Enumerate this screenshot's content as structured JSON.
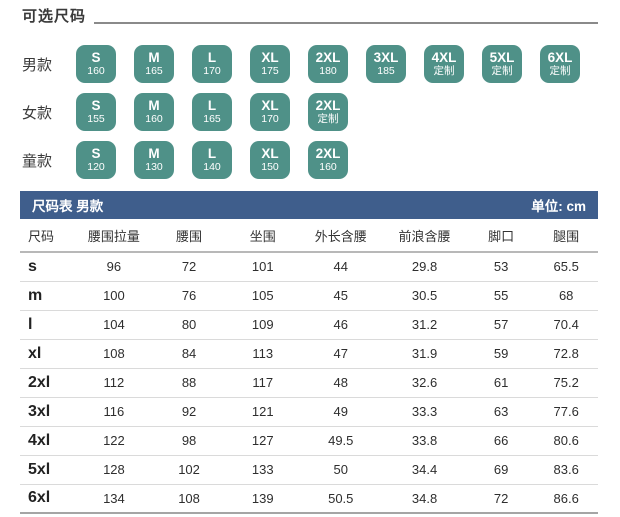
{
  "header": {
    "title": "可选尺码"
  },
  "colors": {
    "badge_green": "#4f9188",
    "table_header_blue": "#3f5e8c"
  },
  "size_options": {
    "rows": [
      {
        "label": "男款",
        "badges": [
          {
            "size": "S",
            "sub": "160"
          },
          {
            "size": "M",
            "sub": "165"
          },
          {
            "size": "L",
            "sub": "170"
          },
          {
            "size": "XL",
            "sub": "175"
          },
          {
            "size": "2XL",
            "sub": "180"
          },
          {
            "size": "3XL",
            "sub": "185"
          },
          {
            "size": "4XL",
            "sub": "定制"
          },
          {
            "size": "5XL",
            "sub": "定制"
          },
          {
            "size": "6XL",
            "sub": "定制"
          }
        ]
      },
      {
        "label": "女款",
        "badges": [
          {
            "size": "S",
            "sub": "155"
          },
          {
            "size": "M",
            "sub": "160"
          },
          {
            "size": "L",
            "sub": "165"
          },
          {
            "size": "XL",
            "sub": "170"
          },
          {
            "size": "2XL",
            "sub": "定制"
          }
        ]
      },
      {
        "label": "童款",
        "badges": [
          {
            "size": "S",
            "sub": "120"
          },
          {
            "size": "M",
            "sub": "130"
          },
          {
            "size": "L",
            "sub": "140"
          },
          {
            "size": "XL",
            "sub": "150"
          },
          {
            "size": "2XL",
            "sub": "160"
          }
        ]
      }
    ]
  },
  "size_table": {
    "title": "尺码表 男款",
    "unit_label": "单位: cm",
    "columns": [
      "尺码",
      "腰围拉量",
      "腰围",
      "坐围",
      "外长含腰",
      "前浪含腰",
      "脚口",
      "腿围"
    ],
    "rows": [
      {
        "size": "s",
        "values": [
          "96",
          "72",
          "101",
          "44",
          "29.8",
          "53",
          "65.5"
        ]
      },
      {
        "size": "m",
        "values": [
          "100",
          "76",
          "105",
          "45",
          "30.5",
          "55",
          "68"
        ]
      },
      {
        "size": "l",
        "values": [
          "104",
          "80",
          "109",
          "46",
          "31.2",
          "57",
          "70.4"
        ]
      },
      {
        "size": "xl",
        "values": [
          "108",
          "84",
          "113",
          "47",
          "31.9",
          "59",
          "72.8"
        ]
      },
      {
        "size": "2xl",
        "values": [
          "112",
          "88",
          "117",
          "48",
          "32.6",
          "61",
          "75.2"
        ]
      },
      {
        "size": "3xl",
        "values": [
          "116",
          "92",
          "121",
          "49",
          "33.3",
          "63",
          "77.6"
        ]
      },
      {
        "size": "4xl",
        "values": [
          "122",
          "98",
          "127",
          "49.5",
          "33.8",
          "66",
          "80.6"
        ]
      },
      {
        "size": "5xl",
        "values": [
          "128",
          "102",
          "133",
          "50",
          "34.4",
          "69",
          "83.6"
        ]
      },
      {
        "size": "6xl",
        "values": [
          "134",
          "108",
          "139",
          "50.5",
          "34.8",
          "72",
          "86.6"
        ]
      }
    ]
  }
}
